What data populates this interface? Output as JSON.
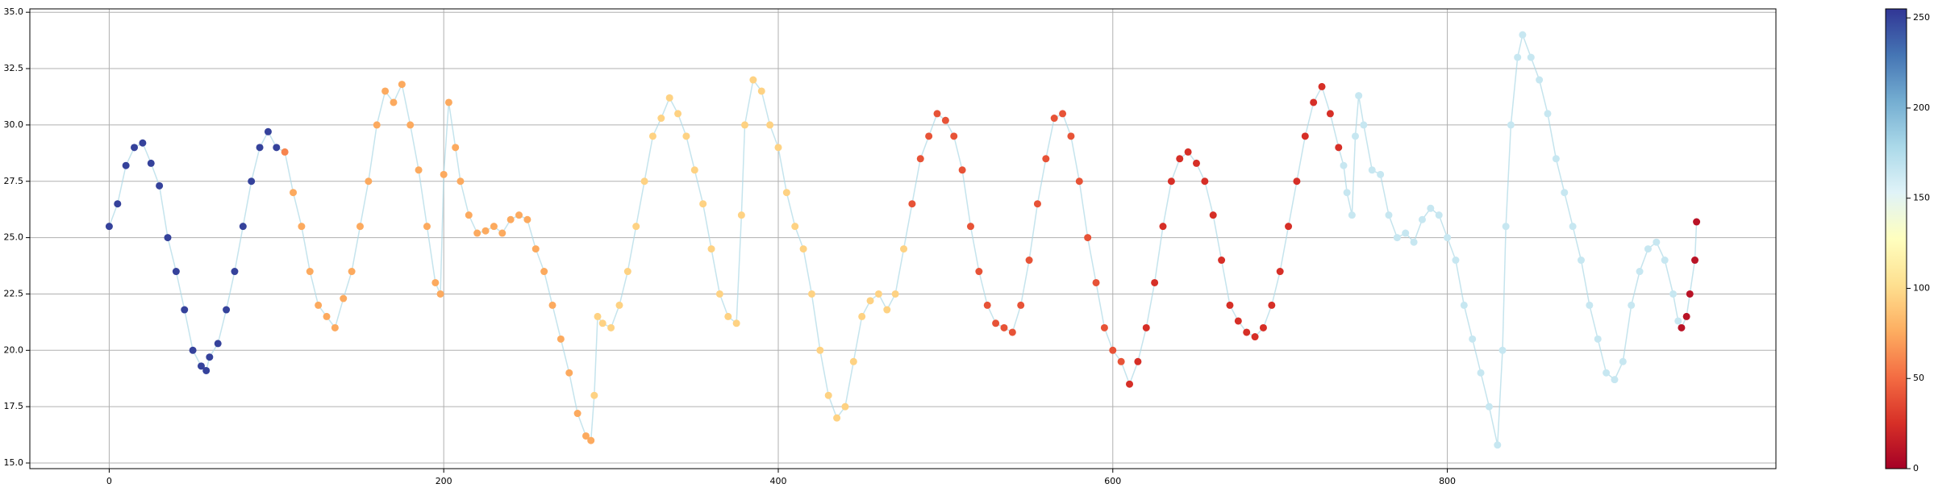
{
  "chart_data": {
    "type": "scatter",
    "x": [
      0,
      5,
      10,
      15,
      20,
      25,
      30,
      35,
      40,
      45,
      50,
      55,
      58,
      60,
      65,
      70,
      75,
      80,
      85,
      90,
      95,
      100,
      105,
      110,
      115,
      120,
      125,
      130,
      135,
      140,
      145,
      150,
      155,
      160,
      165,
      170,
      175,
      180,
      185,
      190,
      195,
      198,
      200,
      203,
      207,
      210,
      215,
      220,
      225,
      230,
      235,
      240,
      245,
      250,
      255,
      260,
      265,
      270,
      275,
      280,
      285,
      288,
      290,
      292,
      295,
      300,
      305,
      310,
      315,
      320,
      325,
      330,
      335,
      340,
      345,
      350,
      355,
      360,
      365,
      370,
      375,
      378,
      380,
      385,
      390,
      395,
      400,
      405,
      410,
      415,
      420,
      425,
      430,
      435,
      440,
      445,
      450,
      455,
      460,
      465,
      470,
      475,
      480,
      485,
      490,
      495,
      500,
      505,
      510,
      515,
      520,
      525,
      530,
      535,
      540,
      545,
      550,
      555,
      560,
      565,
      570,
      575,
      580,
      585,
      590,
      595,
      600,
      605,
      610,
      615,
      620,
      625,
      630,
      635,
      640,
      645,
      650,
      655,
      660,
      665,
      670,
      675,
      680,
      685,
      690,
      695,
      700,
      705,
      710,
      715,
      720,
      725,
      730,
      735,
      738,
      740,
      743,
      745,
      747,
      750,
      755,
      760,
      765,
      770,
      775,
      780,
      785,
      790,
      795,
      800,
      805,
      810,
      815,
      820,
      825,
      830,
      833,
      835,
      838,
      842,
      845,
      850,
      855,
      860,
      865,
      870,
      875,
      880,
      885,
      890,
      895,
      900,
      905,
      910,
      915,
      920,
      925,
      930,
      935,
      938,
      940,
      943,
      945,
      948,
      949
    ],
    "values": [
      25.5,
      26.5,
      28.2,
      29.0,
      29.2,
      28.3,
      27.3,
      25.0,
      23.5,
      21.8,
      20.0,
      19.3,
      19.1,
      19.7,
      20.3,
      21.8,
      23.5,
      25.5,
      27.5,
      29.0,
      29.7,
      29.0,
      28.8,
      27.0,
      25.5,
      23.5,
      22.0,
      21.5,
      21.0,
      22.3,
      23.5,
      25.5,
      27.5,
      30.0,
      31.5,
      31.0,
      31.8,
      30.0,
      28.0,
      25.5,
      23.0,
      22.5,
      27.8,
      31.0,
      29.0,
      27.5,
      26.0,
      25.2,
      25.3,
      25.5,
      25.2,
      25.8,
      26.0,
      25.8,
      24.5,
      23.5,
      22.0,
      20.5,
      19.0,
      17.2,
      16.2,
      16.0,
      18.0,
      21.5,
      21.2,
      21.0,
      22.0,
      23.5,
      25.5,
      27.5,
      29.5,
      30.3,
      31.2,
      30.5,
      29.5,
      28.0,
      26.5,
      24.5,
      22.5,
      21.5,
      21.2,
      26.0,
      30.0,
      32.0,
      31.5,
      30.0,
      29.0,
      27.0,
      25.5,
      24.5,
      22.5,
      20.0,
      18.0,
      17.0,
      17.5,
      19.5,
      21.5,
      22.2,
      22.5,
      21.8,
      22.5,
      24.5,
      26.5,
      28.5,
      29.5,
      30.5,
      30.2,
      29.5,
      28.0,
      25.5,
      23.5,
      22.0,
      21.2,
      21.0,
      20.8,
      22.0,
      24.0,
      26.5,
      28.5,
      30.3,
      30.5,
      29.5,
      27.5,
      25.0,
      23.0,
      21.0,
      20.0,
      19.5,
      18.5,
      19.5,
      21.0,
      23.0,
      25.5,
      27.5,
      28.5,
      28.8,
      28.3,
      27.5,
      26.0,
      24.0,
      22.0,
      21.3,
      20.8,
      20.6,
      21.0,
      22.0,
      23.5,
      25.5,
      27.5,
      29.5,
      31.0,
      31.7,
      30.5,
      29.0,
      28.2,
      27.0,
      26.0,
      29.5,
      31.3,
      30.0,
      28.0,
      27.8,
      26.0,
      25.0,
      25.2,
      24.8,
      25.8,
      26.3,
      26.0,
      25.0,
      24.0,
      22.0,
      20.5,
      19.0,
      17.5,
      15.8,
      20.0,
      25.5,
      30.0,
      33.0,
      34.0,
      33.0,
      32.0,
      30.5,
      28.5,
      27.0,
      25.5,
      24.0,
      22.0,
      20.5,
      19.0,
      18.7,
      19.5,
      22.0,
      23.5,
      24.5,
      24.8,
      24.0,
      22.5,
      21.3,
      21.0,
      21.5,
      22.5,
      24.0,
      25.7
    ],
    "c": [
      250,
      250,
      250,
      250,
      250,
      250,
      250,
      250,
      250,
      250,
      250,
      250,
      250,
      250,
      250,
      250,
      250,
      250,
      250,
      250,
      250,
      250,
      60,
      75,
      75,
      75,
      75,
      75,
      75,
      75,
      75,
      75,
      75,
      75,
      75,
      75,
      75,
      75,
      75,
      75,
      75,
      75,
      75,
      75,
      75,
      75,
      75,
      75,
      75,
      75,
      75,
      75,
      75,
      75,
      75,
      75,
      75,
      75,
      75,
      75,
      75,
      75,
      95,
      95,
      95,
      95,
      95,
      95,
      95,
      95,
      95,
      95,
      95,
      95,
      95,
      95,
      95,
      95,
      95,
      95,
      95,
      95,
      95,
      95,
      95,
      95,
      95,
      95,
      95,
      95,
      95,
      95,
      95,
      95,
      95,
      95,
      95,
      95,
      95,
      95,
      95,
      95,
      40,
      40,
      40,
      40,
      40,
      40,
      40,
      40,
      40,
      40,
      40,
      40,
      40,
      40,
      40,
      40,
      40,
      40,
      40,
      40,
      40,
      40,
      40,
      40,
      40,
      40,
      25,
      25,
      25,
      25,
      25,
      25,
      25,
      25,
      25,
      25,
      25,
      25,
      25,
      25,
      25,
      25,
      25,
      25,
      25,
      25,
      25,
      25,
      25,
      25,
      25,
      25,
      165,
      165,
      165,
      165,
      165,
      165,
      165,
      165,
      165,
      165,
      165,
      165,
      165,
      165,
      165,
      165,
      165,
      165,
      165,
      165,
      165,
      165,
      165,
      165,
      165,
      165,
      165,
      165,
      165,
      165,
      165,
      165,
      165,
      165,
      165,
      165,
      165,
      165,
      165,
      165,
      165,
      165,
      165,
      165,
      165,
      165,
      10,
      10,
      10,
      10,
      10,
      10
    ],
    "clim": [
      0,
      255
    ],
    "colormap": [
      "#a50026",
      "#d73027",
      "#f46d43",
      "#fdae61",
      "#fee090",
      "#ffffbf",
      "#e0f3f8",
      "#abd9e9",
      "#74add1",
      "#4575b4",
      "#313695"
    ],
    "line_color": "#add8e6",
    "xlim": [
      -47.45,
      996.45
    ],
    "xticks": [
      0,
      200,
      400,
      600,
      800
    ],
    "ylim": [
      14.75,
      35.15
    ],
    "yticks": [
      {
        "value": 15,
        "label": "15.0"
      },
      17.5,
      {
        "value": 20,
        "label": "20.0"
      },
      22.5,
      {
        "value": 25,
        "label": "25.0"
      },
      27.5,
      {
        "value": 30,
        "label": "30.0"
      },
      32.5,
      {
        "value": 35,
        "label": "35.0"
      }
    ],
    "cticks": [
      0,
      50,
      100,
      150,
      200,
      250
    ],
    "grid": true
  }
}
